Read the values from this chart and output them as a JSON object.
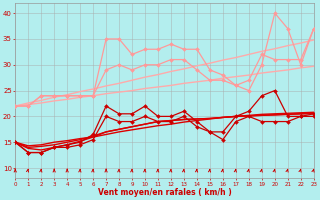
{
  "xlabel": "Vent moyen/en rafales ( km/h )",
  "xlim": [
    0,
    23
  ],
  "ylim": [
    8,
    42
  ],
  "yticks": [
    10,
    15,
    20,
    25,
    30,
    35,
    40
  ],
  "xticks": [
    0,
    1,
    2,
    3,
    4,
    5,
    6,
    7,
    8,
    9,
    10,
    11,
    12,
    13,
    14,
    15,
    16,
    17,
    18,
    19,
    20,
    21,
    22,
    23
  ],
  "bg_color": "#b3eeee",
  "grid_color": "#aaaaaa",
  "series": [
    {
      "x": [
        0,
        1,
        2,
        3,
        4,
        5,
        6,
        7,
        8,
        9,
        10,
        11,
        12,
        13,
        14,
        15,
        16,
        17,
        18,
        19,
        20,
        21,
        22,
        23
      ],
      "y": [
        22,
        22.3,
        22.6,
        23,
        23.3,
        23.7,
        24,
        24.4,
        24.7,
        25,
        25.4,
        25.7,
        26,
        26.4,
        26.7,
        27,
        27.4,
        27.7,
        28,
        28.4,
        28.7,
        29,
        29.4,
        29.7
      ],
      "color": "#ffaaaa",
      "lw": 1.0,
      "marker": null
    },
    {
      "x": [
        0,
        1,
        2,
        3,
        4,
        5,
        6,
        7,
        8,
        9,
        10,
        11,
        12,
        13,
        14,
        15,
        16,
        17,
        18,
        19,
        20,
        21,
        22,
        23
      ],
      "y": [
        22,
        22.6,
        23.1,
        23.7,
        24.2,
        24.8,
        25.3,
        25.9,
        26.4,
        27,
        27.6,
        28.1,
        28.7,
        29.2,
        29.8,
        30.3,
        30.9,
        31.4,
        32,
        32.6,
        33.1,
        33.7,
        34.2,
        34.8
      ],
      "color": "#ffaaaa",
      "lw": 1.0,
      "marker": null
    },
    {
      "x": [
        0,
        1,
        2,
        3,
        4,
        5,
        6,
        7,
        8,
        9,
        10,
        11,
        12,
        13,
        14,
        15,
        16,
        17,
        18,
        19,
        20,
        21,
        22,
        23
      ],
      "y": [
        22,
        22,
        24,
        24,
        24,
        24,
        24,
        35,
        35,
        32,
        33,
        33,
        34,
        33,
        33,
        29,
        28,
        26,
        25,
        30,
        40,
        37,
        30,
        37
      ],
      "color": "#ff9999",
      "lw": 0.9,
      "marker": "D",
      "ms": 2.0
    },
    {
      "x": [
        0,
        1,
        2,
        3,
        4,
        5,
        6,
        7,
        8,
        9,
        10,
        11,
        12,
        13,
        14,
        15,
        16,
        17,
        18,
        19,
        20,
        21,
        22,
        23
      ],
      "y": [
        22,
        22,
        24,
        24,
        24,
        24,
        24,
        29,
        30,
        29,
        30,
        30,
        31,
        31,
        29,
        27,
        27,
        26,
        27,
        32,
        31,
        31,
        31,
        37
      ],
      "color": "#ff9999",
      "lw": 0.9,
      "marker": "D",
      "ms": 2.0
    },
    {
      "x": [
        0,
        1,
        2,
        3,
        4,
        5,
        6,
        7,
        8,
        9,
        10,
        11,
        12,
        13,
        14,
        15,
        16,
        17,
        18,
        19,
        20,
        21,
        22,
        23
      ],
      "y": [
        15,
        14.3,
        14.5,
        15,
        15.3,
        15.7,
        16,
        16.5,
        17,
        17.4,
        17.8,
        18.2,
        18.5,
        18.9,
        19.2,
        19.5,
        19.8,
        20,
        20.2,
        20.4,
        20.5,
        20.6,
        20.7,
        20.8
      ],
      "color": "#dd0000",
      "lw": 1.0,
      "marker": null
    },
    {
      "x": [
        0,
        1,
        2,
        3,
        4,
        5,
        6,
        7,
        8,
        9,
        10,
        11,
        12,
        13,
        14,
        15,
        16,
        17,
        18,
        19,
        20,
        21,
        22,
        23
      ],
      "y": [
        15,
        14,
        14.2,
        14.5,
        15,
        15.5,
        16.2,
        17,
        17.5,
        18,
        18.5,
        19,
        19.2,
        19.4,
        19.5,
        19.6,
        19.8,
        20,
        20.1,
        20.2,
        20.3,
        20.4,
        20.5,
        20.6
      ],
      "color": "#dd0000",
      "lw": 1.0,
      "marker": null
    },
    {
      "x": [
        0,
        1,
        2,
        3,
        4,
        5,
        6,
        7,
        8,
        9,
        10,
        11,
        12,
        13,
        14,
        15,
        16,
        17,
        18,
        19,
        20,
        21,
        22,
        23
      ],
      "y": [
        15,
        13.8,
        13.5,
        14,
        14.5,
        15.2,
        16,
        17,
        17.5,
        18,
        18.5,
        19,
        19.2,
        19.4,
        19.5,
        19.6,
        19.8,
        20,
        20.1,
        20.2,
        20.3,
        20.4,
        20.5,
        20.6
      ],
      "color": "#dd0000",
      "lw": 1.0,
      "marker": null
    },
    {
      "x": [
        0,
        1,
        2,
        3,
        4,
        5,
        6,
        7,
        8,
        9,
        10,
        11,
        12,
        13,
        14,
        15,
        16,
        17,
        18,
        19,
        20,
        21,
        22,
        23
      ],
      "y": [
        15,
        13,
        13,
        14,
        14.5,
        15,
        16.5,
        22,
        20.5,
        20.5,
        22,
        20,
        20,
        21,
        19,
        17,
        17,
        20,
        21,
        24,
        25,
        20,
        20,
        20.5
      ],
      "color": "#cc0000",
      "lw": 0.9,
      "marker": "D",
      "ms": 2.0
    },
    {
      "x": [
        0,
        1,
        2,
        3,
        4,
        5,
        6,
        7,
        8,
        9,
        10,
        11,
        12,
        13,
        14,
        15,
        16,
        17,
        18,
        19,
        20,
        21,
        22,
        23
      ],
      "y": [
        15,
        13,
        13,
        14,
        14,
        14.5,
        15.5,
        20,
        19,
        19,
        20,
        19,
        19,
        20,
        18,
        17,
        15.5,
        19,
        20,
        19,
        19,
        19,
        20,
        20
      ],
      "color": "#cc0000",
      "lw": 0.9,
      "marker": "D",
      "ms": 2.0
    }
  ]
}
